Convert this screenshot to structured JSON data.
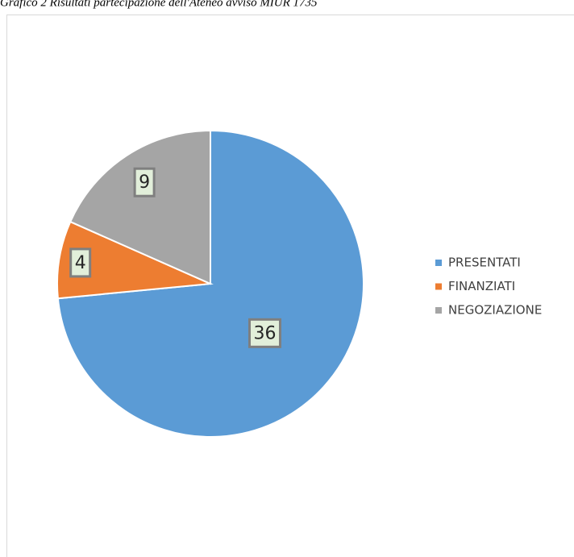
{
  "chart_data": {
    "type": "pie",
    "title": "Grafico 2 Risultati partecipazione dell'Ateneo avviso MIUR 1735",
    "categories": [
      "PRESENTATI",
      "FINANZIATI",
      "NEGOZIAZIONE"
    ],
    "values": [
      36,
      4,
      9
    ],
    "colors": [
      "#5b9bd5",
      "#ed7d31",
      "#a5a5a5"
    ],
    "legend": "right"
  }
}
